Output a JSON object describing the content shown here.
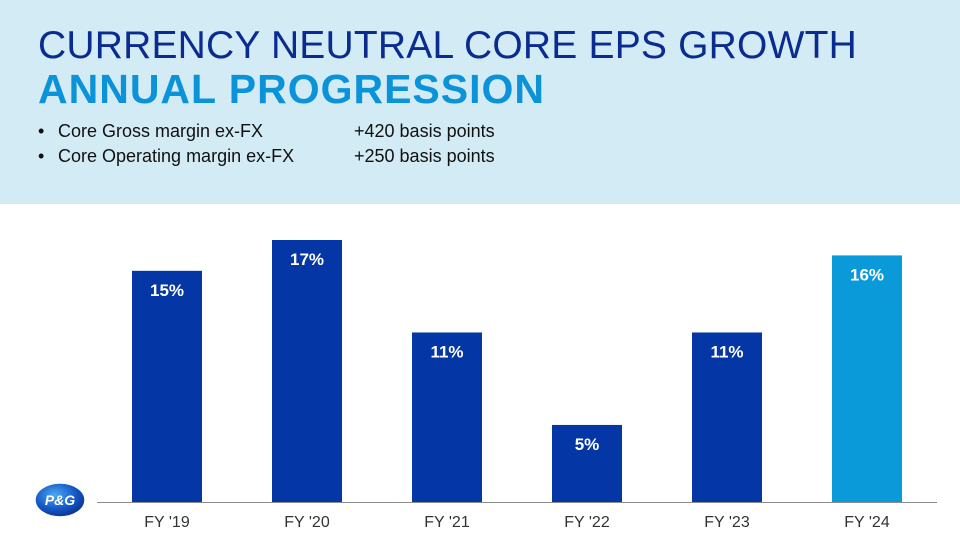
{
  "header": {
    "title_line1": "CURRENCY NEUTRAL CORE EPS GROWTH",
    "title_line2": "ANNUAL PROGRESSION",
    "bullets": [
      {
        "marker": "•",
        "label": "Core Gross margin  ex-FX",
        "value": "+420 basis points"
      },
      {
        "marker": "•",
        "label": "Core Operating margin  ex-FX",
        "value": "+250 basis points"
      }
    ]
  },
  "logo": {
    "text": "P&G",
    "icon": "pg-logo"
  },
  "colors": {
    "header_bg": "#d3ebf4",
    "title_dark": "#0a2b8f",
    "title_light": "#0a93d8",
    "bar_dark": "#0437a5",
    "bar_highlight": "#0a9ad9",
    "axis": "#8c8c8c"
  },
  "chart_data": {
    "type": "bar",
    "categories": [
      "FY '19",
      "FY '20",
      "FY '21",
      "FY '22",
      "FY '23",
      "FY '24"
    ],
    "values": [
      15,
      17,
      11,
      5,
      11,
      16
    ],
    "data_labels": [
      "15%",
      "17%",
      "11%",
      "5%",
      "11%",
      "16%"
    ],
    "highlight_index": 5,
    "title": "",
    "xlabel": "",
    "ylabel": "",
    "ylim": [
      0,
      17
    ],
    "grid": false,
    "legend": "none"
  }
}
